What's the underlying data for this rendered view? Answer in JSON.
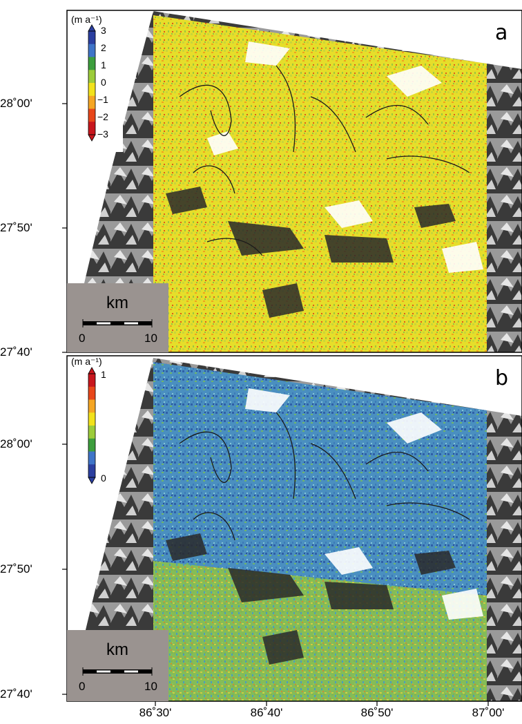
{
  "panel_a": {
    "label": "a",
    "colorbar_unit": "(m a⁻¹)",
    "colorbar_ticks": [
      "3",
      "2",
      "1",
      "0",
      "−1",
      "−2",
      "−3"
    ],
    "colorbar_colors": [
      "#2b3fa0",
      "#3f74c8",
      "#3d9e3d",
      "#9ccc3a",
      "#f2e21b",
      "#f5a623",
      "#e8471a",
      "#c8161d"
    ],
    "scale_label": "km",
    "scale_ticks": [
      "0",
      "10"
    ],
    "lat_labels": [
      "28˚00'",
      "27˚50'",
      "27˚40'"
    ]
  },
  "panel_b": {
    "label": "b",
    "colorbar_unit": "(m a⁻¹)",
    "colorbar_ticks": [
      "1",
      "0"
    ],
    "colorbar_colors": [
      "#c8161d",
      "#e8471a",
      "#f5a623",
      "#f2e21b",
      "#9ccc3a",
      "#3d9e3d",
      "#3f74c8",
      "#2b3fa0"
    ],
    "scale_label": "km",
    "scale_ticks": [
      "0",
      "10"
    ],
    "lat_labels": [
      "28˚00'",
      "27˚50'",
      "27˚40'"
    ]
  },
  "lon_labels": [
    "86˚30'",
    "86˚40'",
    "86˚50'",
    "87˚00'"
  ]
}
